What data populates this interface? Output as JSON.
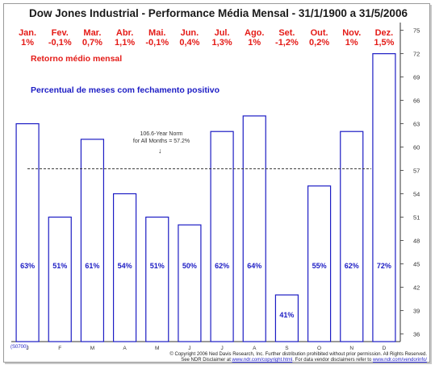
{
  "chart_data": {
    "type": "bar",
    "title": "Dow Jones Industrial - Performance Média Mensal - 31/1/1900 a 31/5/2006",
    "categories": [
      "J",
      "F",
      "M",
      "A",
      "M",
      "J",
      "J",
      "A",
      "S",
      "O",
      "N",
      "D"
    ],
    "month_names": [
      "Jan.",
      "Fev.",
      "Mar.",
      "Abr.",
      "Mai.",
      "Jun.",
      "Jul.",
      "Ago.",
      "Set.",
      "Out.",
      "Nov.",
      "Dez."
    ],
    "avg_return_labels": [
      "1%",
      "-0,1%",
      "0,7%",
      "1,1%",
      "-0,1%",
      "0,4%",
      "1,3%",
      "1%",
      "-1,2%",
      "0,2%",
      "1%",
      "1,5%"
    ],
    "series": [
      {
        "name": "Percentual de meses com fechamento positivo",
        "values": [
          63,
          51,
          61,
          54,
          51,
          50,
          62,
          64,
          41,
          55,
          62,
          72
        ],
        "labels": [
          "63%",
          "51%",
          "61%",
          "54%",
          "51%",
          "50%",
          "62%",
          "64%",
          "41%",
          "55%",
          "62%",
          "72%"
        ]
      }
    ],
    "reference_line": {
      "value": 57.2,
      "label_line1": "106.6-Year Norm",
      "label_line2": "for All Months = 57.2%"
    },
    "ylim": [
      35,
      76
    ],
    "yticks": [
      36,
      39,
      42,
      45,
      48,
      51,
      54,
      57,
      60,
      63,
      66,
      69,
      72,
      75
    ],
    "y_axis_side": "right",
    "legend_red": "Retorno médio mensal",
    "legend_blue": "Percentual de meses com fechamento positivo",
    "colors": {
      "bar_stroke": "#1c1cc4",
      "pct_text": "#1c1cc4",
      "month_text": "#e41b17",
      "reference": "#222222"
    }
  },
  "footer": {
    "line1": "© Copyright 2006 Ned Davis Research, Inc. Further distribution prohibited without prior permission. All Rights Reserved.",
    "line2_prefix": "See NDR Disclaimer at ",
    "line2_link1": "www.ndr.com/copyright.html",
    "line2_middle": ". For data vendor disclaimers refer to ",
    "line2_link2": "www.ndr.com/vendorinfo/"
  },
  "stamp": "(S0700)"
}
